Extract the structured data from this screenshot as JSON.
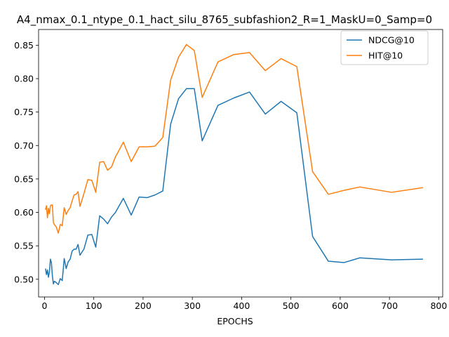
{
  "chart_data": {
    "type": "line",
    "title": "A4_nmax_0.1_ntype_0.1_hact_silu_8765_subfashion2_R=1_MaskU=0_Samp=0",
    "xlabel": "EPOCHS",
    "ylabel": "",
    "xlim": [
      -12,
      808
    ],
    "ylim": [
      0.4735,
      0.8735
    ],
    "x_ticks": [
      0,
      100,
      200,
      300,
      400,
      500,
      600,
      700,
      800
    ],
    "y_ticks": [
      0.5,
      0.55,
      0.6,
      0.65,
      0.7,
      0.75,
      0.8,
      0.85
    ],
    "x_tick_labels": [
      "0",
      "100",
      "200",
      "300",
      "400",
      "500",
      "600",
      "700",
      "800"
    ],
    "y_tick_labels": [
      "0.50",
      "0.55",
      "0.60",
      "0.65",
      "0.70",
      "0.75",
      "0.80",
      "0.85"
    ],
    "grid": false,
    "legend_position": "top-right",
    "series": [
      {
        "name": "NDCG@10",
        "color": "#1f77b4",
        "x": [
          2,
          4,
          6,
          8,
          10,
          12,
          14,
          16,
          18,
          20,
          24,
          28,
          32,
          36,
          40,
          44,
          48,
          52,
          56,
          60,
          64,
          68,
          72,
          80,
          88,
          96,
          104,
          112,
          120,
          128,
          136,
          144,
          160,
          176,
          192,
          208,
          224,
          240,
          256,
          272,
          288,
          304,
          320,
          352,
          384,
          416,
          448,
          480,
          512,
          544,
          576,
          608,
          640,
          704,
          768
        ],
        "y": [
          0.516,
          0.507,
          0.514,
          0.503,
          0.511,
          0.53,
          0.525,
          0.505,
          0.493,
          0.497,
          0.495,
          0.492,
          0.501,
          0.498,
          0.531,
          0.516,
          0.526,
          0.53,
          0.542,
          0.545,
          0.545,
          0.552,
          0.536,
          0.545,
          0.566,
          0.567,
          0.548,
          0.595,
          0.59,
          0.583,
          0.593,
          0.6,
          0.621,
          0.596,
          0.623,
          0.622,
          0.626,
          0.632,
          0.732,
          0.77,
          0.785,
          0.785,
          0.707,
          0.76,
          0.771,
          0.78,
          0.747,
          0.766,
          0.749,
          0.564,
          0.527,
          0.525,
          0.532,
          0.529,
          0.53
        ]
      },
      {
        "name": "HIT@10",
        "color": "#ff7f0e",
        "x": [
          2,
          4,
          6,
          8,
          10,
          12,
          14,
          16,
          18,
          20,
          24,
          28,
          32,
          36,
          40,
          44,
          48,
          52,
          56,
          60,
          64,
          68,
          72,
          80,
          88,
          96,
          104,
          112,
          120,
          128,
          136,
          144,
          160,
          176,
          192,
          208,
          224,
          240,
          256,
          272,
          288,
          304,
          320,
          352,
          384,
          416,
          448,
          480,
          512,
          544,
          576,
          608,
          640,
          704,
          768
        ],
        "y": [
          0.604,
          0.61,
          0.592,
          0.606,
          0.598,
          0.61,
          0.611,
          0.611,
          0.585,
          0.582,
          0.578,
          0.569,
          0.582,
          0.58,
          0.607,
          0.597,
          0.603,
          0.607,
          0.617,
          0.626,
          0.627,
          0.631,
          0.609,
          0.628,
          0.649,
          0.648,
          0.63,
          0.675,
          0.676,
          0.663,
          0.668,
          0.683,
          0.705,
          0.676,
          0.698,
          0.698,
          0.699,
          0.712,
          0.798,
          0.832,
          0.851,
          0.842,
          0.772,
          0.825,
          0.836,
          0.839,
          0.812,
          0.83,
          0.818,
          0.661,
          0.627,
          0.633,
          0.638,
          0.63,
          0.637
        ]
      }
    ]
  }
}
